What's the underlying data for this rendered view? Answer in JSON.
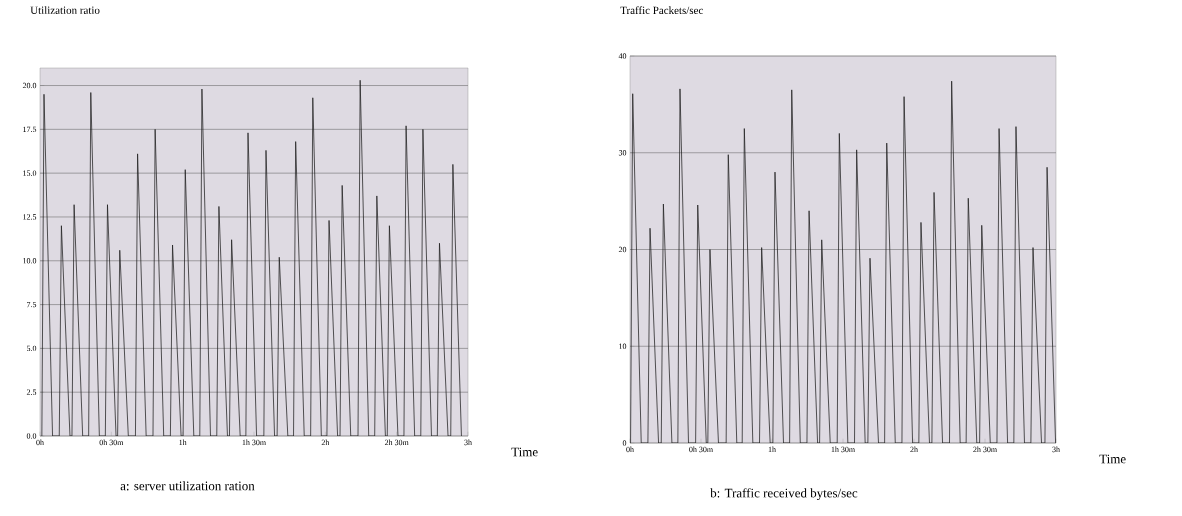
{
  "chart_data": [
    {
      "type": "line",
      "ylabel": "Utilization ratio",
      "xlabel": "Time",
      "annotations": [
        "a: server utilization ration"
      ],
      "color": "#1e1e1e",
      "grid": "y",
      "xlim": [
        0,
        3
      ],
      "xticks": [
        {
          "value": 0,
          "label": "0h"
        },
        {
          "value": 0.5,
          "label": "0h 30m"
        },
        {
          "value": 1,
          "label": "1h"
        },
        {
          "value": 1.5,
          "label": "1h 30m"
        },
        {
          "value": 2,
          "label": "2h"
        },
        {
          "value": 2.5,
          "label": "2h 30m"
        },
        {
          "value": 3,
          "label": "3h"
        }
      ],
      "ylim": [
        0,
        21
      ],
      "yticks": [
        {
          "value": 0,
          "label": "0.0"
        },
        {
          "value": 2.5,
          "label": "2.5"
        },
        {
          "value": 5,
          "label": "5.0"
        },
        {
          "value": 7.5,
          "label": "7.5"
        },
        {
          "value": 10,
          "label": "10.0"
        },
        {
          "value": 12.5,
          "label": "12.5"
        },
        {
          "value": 15,
          "label": "15.0"
        },
        {
          "value": 17.5,
          "label": "17.5"
        },
        {
          "value": 20,
          "label": "20.0"
        }
      ],
      "x": [
        0.013,
        0.028,
        0.088,
        0.135,
        0.15,
        0.21,
        0.224,
        0.239,
        0.299,
        0.341,
        0.356,
        0.416,
        0.458,
        0.473,
        0.533,
        0.544,
        0.559,
        0.619,
        0.669,
        0.684,
        0.744,
        0.792,
        0.807,
        0.867,
        0.914,
        0.929,
        0.989,
        1.003,
        1.018,
        1.078,
        1.12,
        1.135,
        1.195,
        1.239,
        1.254,
        1.314,
        1.328,
        1.343,
        1.403,
        1.443,
        1.458,
        1.518,
        1.569,
        1.584,
        1.644,
        1.662,
        1.677,
        1.737,
        1.777,
        1.792,
        1.852,
        1.897,
        1.912,
        1.972,
        2.011,
        2.026,
        2.086,
        2.103,
        2.118,
        2.178,
        2.229,
        2.244,
        2.304,
        2.346,
        2.361,
        2.421,
        2.434,
        2.449,
        2.509,
        2.551,
        2.566,
        2.626,
        2.669,
        2.684,
        2.744,
        2.785,
        2.8,
        2.86,
        2.879,
        2.894,
        2.954
      ],
      "values": [
        0,
        19.5,
        0,
        0,
        12.0,
        0,
        0,
        13.2,
        0,
        0,
        19.6,
        0,
        0,
        13.2,
        0,
        0,
        10.6,
        0,
        0,
        16.1,
        0,
        0,
        17.5,
        0,
        0,
        10.9,
        0,
        0,
        15.2,
        0,
        0,
        19.8,
        0,
        0,
        13.1,
        0,
        0,
        11.2,
        0,
        0,
        17.3,
        0,
        0,
        16.3,
        0,
        0,
        10.2,
        0,
        0,
        16.8,
        0,
        0,
        19.3,
        0,
        0,
        12.3,
        0,
        0,
        14.3,
        0,
        0,
        20.3,
        0,
        0,
        13.7,
        0,
        0,
        12.0,
        0,
        0,
        17.7,
        0,
        0,
        17.5,
        0,
        0,
        11.0,
        0,
        0,
        15.5,
        0
      ]
    },
    {
      "type": "line",
      "ylabel": "Traffic Packets/sec",
      "xlabel": "Time",
      "annotations": [
        "b: Traffic received bytes/sec"
      ],
      "color": "#1e1e1e",
      "grid": "y",
      "xlim": [
        0,
        3
      ],
      "xticks": [
        {
          "value": 0,
          "label": "0h"
        },
        {
          "value": 0.5,
          "label": "0h 30m"
        },
        {
          "value": 1,
          "label": "1h"
        },
        {
          "value": 1.5,
          "label": "1h 30m"
        },
        {
          "value": 2,
          "label": "2h"
        },
        {
          "value": 2.5,
          "label": "2h 30m"
        },
        {
          "value": 3,
          "label": "3h"
        }
      ],
      "ylim": [
        0,
        40
      ],
      "yticks": [
        0,
        10,
        20,
        30,
        40
      ],
      "x": [
        0.004,
        0.019,
        0.079,
        0.126,
        0.141,
        0.201,
        0.22,
        0.235,
        0.295,
        0.337,
        0.352,
        0.412,
        0.462,
        0.477,
        0.537,
        0.548,
        0.563,
        0.623,
        0.677,
        0.692,
        0.752,
        0.79,
        0.805,
        0.865,
        0.912,
        0.927,
        0.987,
        1.006,
        1.021,
        1.081,
        1.124,
        1.139,
        1.199,
        1.246,
        1.261,
        1.321,
        1.335,
        1.35,
        1.41,
        1.459,
        1.474,
        1.534,
        1.581,
        1.596,
        1.656,
        1.675,
        1.69,
        1.75,
        1.793,
        1.808,
        1.868,
        1.915,
        1.93,
        1.99,
        2.034,
        2.049,
        2.109,
        2.126,
        2.141,
        2.201,
        2.25,
        2.265,
        2.325,
        2.367,
        2.382,
        2.442,
        2.462,
        2.477,
        2.537,
        2.584,
        2.599,
        2.659,
        2.703,
        2.718,
        2.778,
        2.823,
        2.838,
        2.898,
        2.922,
        2.937,
        2.997
      ],
      "values": [
        0,
        36.1,
        0,
        0,
        22.2,
        0,
        0,
        24.7,
        0,
        0,
        36.6,
        0,
        0,
        24.6,
        0,
        0,
        20.0,
        0,
        0,
        29.8,
        0,
        0,
        32.5,
        0,
        0,
        20.2,
        0,
        0,
        28.0,
        0,
        0,
        36.5,
        0,
        0,
        24.0,
        0,
        0,
        21.0,
        0,
        0,
        32.0,
        0,
        0,
        30.3,
        0,
        0,
        19.1,
        0,
        0,
        31.0,
        0,
        0,
        35.8,
        0,
        0,
        22.8,
        0,
        0,
        25.9,
        0,
        0,
        37.4,
        0,
        0,
        25.3,
        0,
        0,
        22.5,
        0,
        0,
        32.5,
        0,
        0,
        32.7,
        0,
        0,
        20.2,
        0,
        0,
        28.5,
        0
      ]
    }
  ]
}
